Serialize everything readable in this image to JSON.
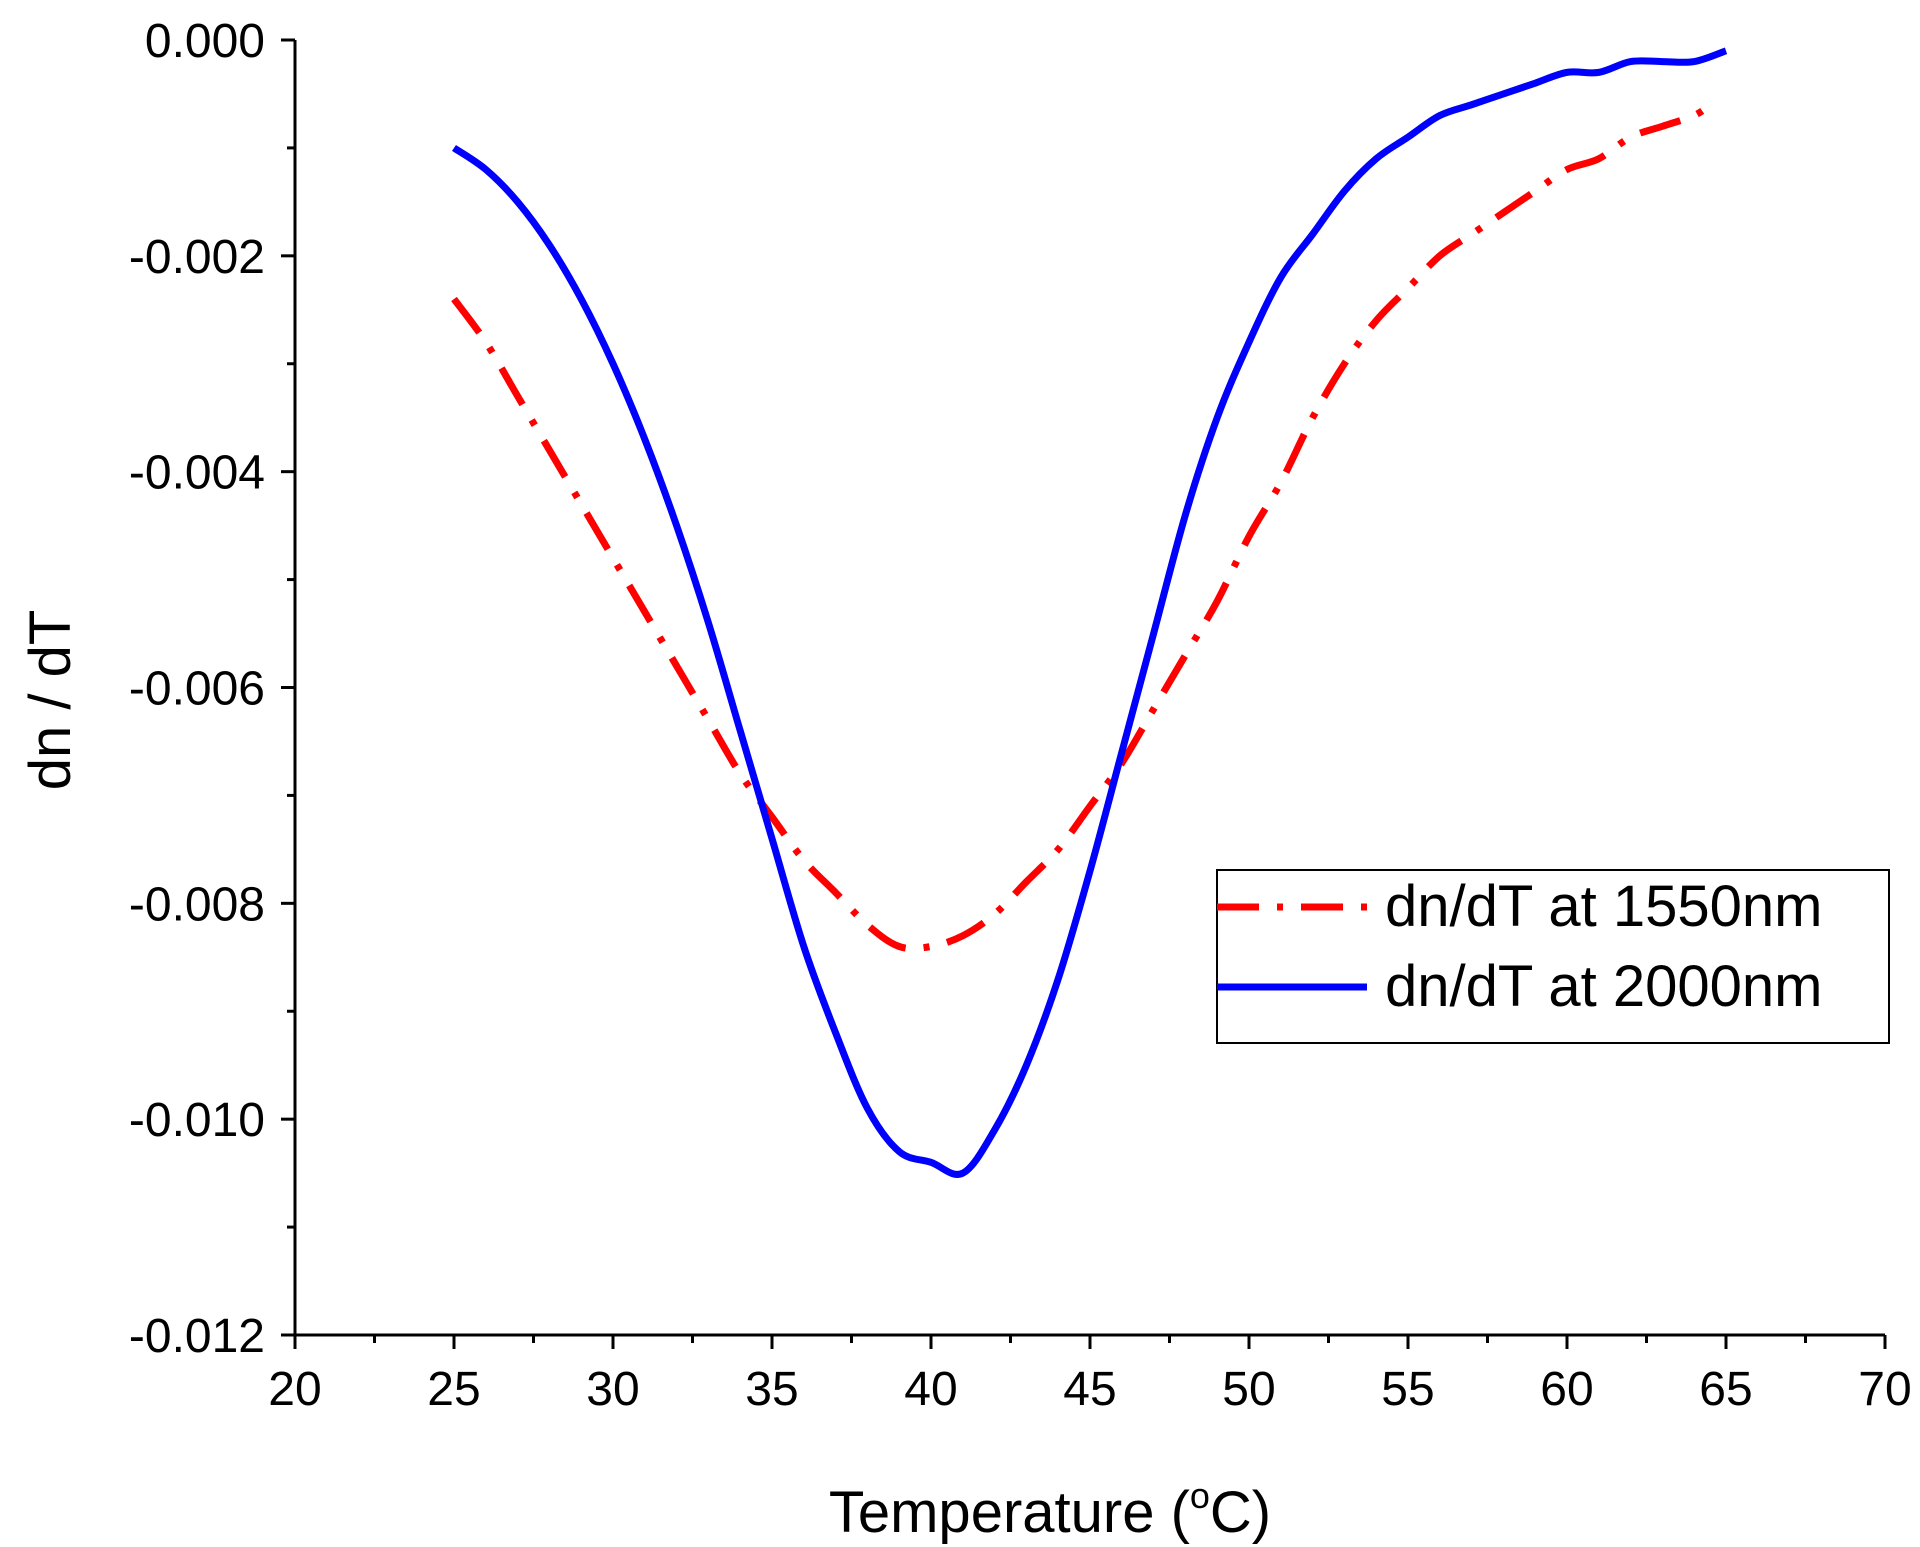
{
  "chart_data": {
    "type": "line",
    "title": "",
    "xlabel": "Temperature (°C)",
    "xlabel_main": "Temperature (",
    "xlabel_degree": "o",
    "xlabel_unit": "C)",
    "ylabel": "dn / dT",
    "xlim": [
      20,
      70
    ],
    "ylim": [
      -0.012,
      0.0
    ],
    "xticks": [
      20,
      25,
      30,
      35,
      40,
      45,
      50,
      55,
      60,
      65,
      70
    ],
    "xtick_labels": [
      "20",
      "25",
      "30",
      "35",
      "40",
      "45",
      "50",
      "55",
      "60",
      "65",
      "70"
    ],
    "yticks": [
      0.0,
      -0.002,
      -0.004,
      -0.006,
      -0.008,
      -0.01,
      -0.012
    ],
    "ytick_labels": [
      "0.000",
      "-0.002",
      "-0.004",
      "-0.006",
      "-0.008",
      "-0.010",
      "-0.012"
    ],
    "legend_position": "center-right",
    "grid": false,
    "series": [
      {
        "name": "dn/dT at 1550nm",
        "color": "#ff0000",
        "style": "dash-dot",
        "x": [
          25,
          26,
          27,
          28,
          29,
          30,
          31,
          32,
          33,
          34,
          35,
          36,
          37,
          38,
          39,
          40,
          41,
          42,
          43,
          44,
          45,
          46,
          47,
          48,
          49,
          50,
          51,
          52,
          53,
          54,
          55,
          56,
          57,
          58,
          59,
          60,
          61,
          62,
          63,
          64,
          64.5
        ],
        "y": [
          -0.0024,
          -0.0028,
          -0.0033,
          -0.0038,
          -0.0043,
          -0.0048,
          -0.0053,
          -0.0058,
          -0.0063,
          -0.0068,
          -0.0072,
          -0.0076,
          -0.0079,
          -0.0082,
          -0.0084,
          -0.0084,
          -0.0083,
          -0.0081,
          -0.0078,
          -0.0075,
          -0.0071,
          -0.0067,
          -0.0062,
          -0.0057,
          -0.0052,
          -0.0046,
          -0.0041,
          -0.0035,
          -0.003,
          -0.0026,
          -0.0023,
          -0.002,
          -0.0018,
          -0.0016,
          -0.0014,
          -0.0012,
          -0.0011,
          -0.0009,
          -0.0008,
          -0.0007,
          -0.0006
        ]
      },
      {
        "name": "dn/dT at 2000nm",
        "color": "#0000ff",
        "style": "solid",
        "x": [
          25,
          26,
          27,
          28,
          29,
          30,
          31,
          32,
          33,
          34,
          35,
          36,
          37,
          38,
          39,
          40,
          41,
          42,
          43,
          44,
          45,
          46,
          47,
          48,
          49,
          50,
          51,
          52,
          53,
          54,
          55,
          56,
          57,
          58,
          59,
          60,
          61,
          62,
          63,
          64,
          65
        ],
        "y": [
          -0.001,
          -0.0012,
          -0.0015,
          -0.0019,
          -0.0024,
          -0.003,
          -0.0037,
          -0.0045,
          -0.0054,
          -0.0064,
          -0.0074,
          -0.0084,
          -0.0092,
          -0.0099,
          -0.0103,
          -0.0104,
          -0.0105,
          -0.0101,
          -0.0095,
          -0.0087,
          -0.0077,
          -0.0066,
          -0.0055,
          -0.0044,
          -0.0035,
          -0.0028,
          -0.0022,
          -0.0018,
          -0.0014,
          -0.0011,
          -0.0009,
          -0.0007,
          -0.0006,
          -0.0005,
          -0.0004,
          -0.0003,
          -0.0003,
          -0.0002,
          -0.0002,
          -0.0002,
          -0.0001
        ]
      }
    ]
  }
}
